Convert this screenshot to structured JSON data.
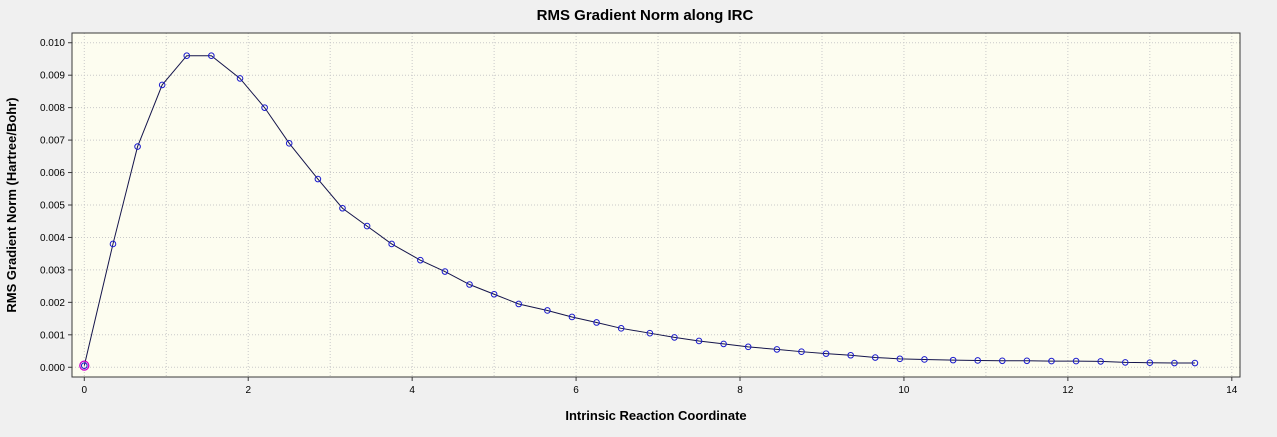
{
  "chart_data": {
    "type": "line",
    "title": "RMS Gradient Norm along IRC",
    "xlabel": "Intrinsic Reaction Coordinate",
    "ylabel": "RMS Gradient Norm (Hartree/Bohr)",
    "xlim": [
      -0.15,
      14.1
    ],
    "ylim": [
      -0.0003,
      0.0103
    ],
    "grid": true,
    "x_gridline_step": 1,
    "xticks": {
      "values": [
        0,
        2,
        4,
        6,
        8,
        10,
        12,
        14
      ],
      "labels": [
        "0",
        "2",
        "4",
        "6",
        "8",
        "10",
        "12",
        "14"
      ]
    },
    "yticks": {
      "values": [
        0.0,
        0.001,
        0.002,
        0.003,
        0.004,
        0.005,
        0.006,
        0.007,
        0.008,
        0.009,
        0.01
      ],
      "labels": [
        "0.000",
        "0.001",
        "0.002",
        "0.003",
        "0.004",
        "0.005",
        "0.006",
        "0.007",
        "0.008",
        "0.009",
        "0.010"
      ]
    },
    "series": [
      {
        "name": "RMS Gradient Norm",
        "x": [
          0.0,
          0.35,
          0.65,
          0.95,
          1.25,
          1.55,
          1.9,
          2.2,
          2.5,
          2.85,
          3.15,
          3.45,
          3.75,
          4.1,
          4.4,
          4.7,
          5.0,
          5.3,
          5.65,
          5.95,
          6.25,
          6.55,
          6.9,
          7.2,
          7.5,
          7.8,
          8.1,
          8.45,
          8.75,
          9.05,
          9.35,
          9.65,
          9.95,
          10.25,
          10.6,
          10.9,
          11.2,
          11.5,
          11.8,
          12.1,
          12.4,
          12.7,
          13.0,
          13.3,
          13.55
        ],
        "y": [
          5e-05,
          0.0038,
          0.0068,
          0.0087,
          0.0096,
          0.0096,
          0.0089,
          0.008,
          0.0069,
          0.0058,
          0.0049,
          0.00435,
          0.0038,
          0.0033,
          0.00295,
          0.00255,
          0.00225,
          0.00195,
          0.00175,
          0.00155,
          0.00138,
          0.0012,
          0.00105,
          0.00092,
          0.00081,
          0.00072,
          0.00063,
          0.00055,
          0.00048,
          0.00042,
          0.00037,
          0.0003,
          0.00026,
          0.00024,
          0.00022,
          0.00021,
          0.0002,
          0.0002,
          0.00019,
          0.00019,
          0.00018,
          0.00015,
          0.00014,
          0.00013,
          0.00013
        ]
      }
    ],
    "start_marker": {
      "x": 0.0,
      "y": 5e-05
    },
    "legend": "none",
    "colors": {
      "line": "#14144b",
      "marker": "#1a1acd",
      "start_marker": "#cc00cc",
      "plot_bg": "#fdfdf0",
      "page_bg": "#f0f0f0",
      "grid": "#c9c9c9",
      "frame": "#3a3a3a"
    }
  }
}
